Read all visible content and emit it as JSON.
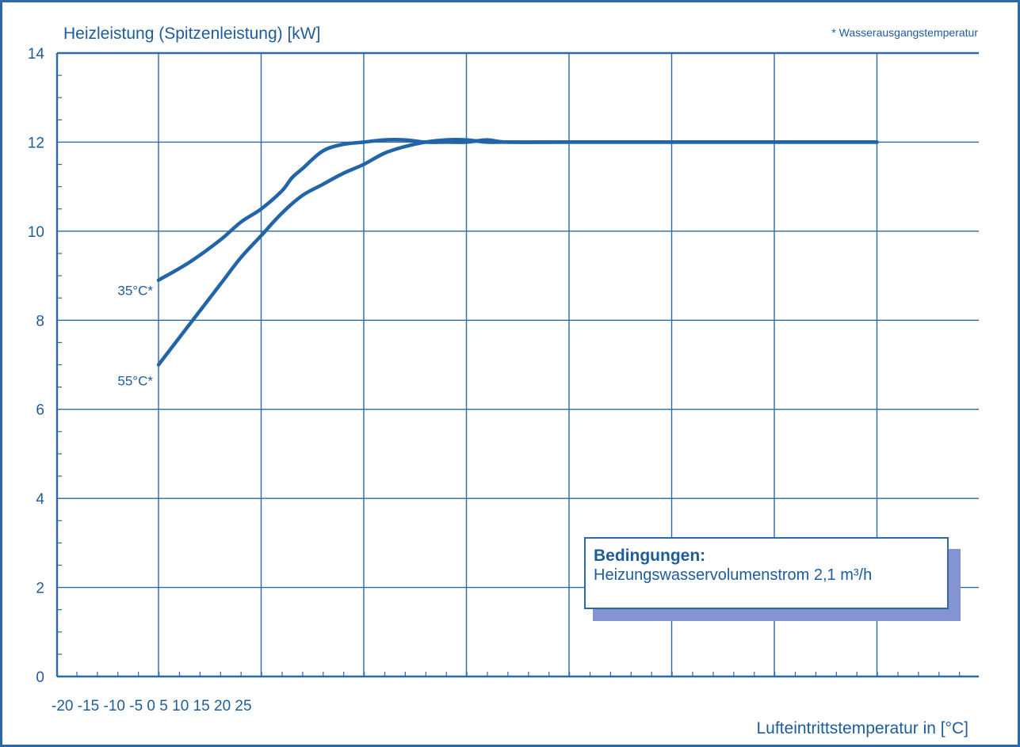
{
  "chart_data": {
    "type": "line",
    "title": "Heizleistung (Spitzenleistung) [kW]",
    "note": "* Wasserausgangstemperatur",
    "xlabel": "Lufteintrittstemperatur in [°C]",
    "x_tick_labels": [
      "-20",
      "-15",
      "-10",
      "-5",
      "0",
      "5",
      "10",
      "15",
      "20",
      "25"
    ],
    "y_tick_labels": [
      "0",
      "2",
      "4",
      "6",
      "8",
      "10",
      "12",
      "14"
    ],
    "ylim": [
      0,
      14
    ],
    "xlim": [
      -20,
      25
    ],
    "grid": true,
    "series": [
      {
        "name": "35°C*",
        "x": [
          -15,
          -13.5,
          -12,
          -11,
          -10,
          -9,
          -8.5,
          -8,
          -7,
          -6,
          -5,
          -4,
          -3,
          -2,
          -1,
          0,
          1,
          2,
          5,
          10,
          15,
          20,
          25
        ],
        "values": [
          8.9,
          9.3,
          9.8,
          10.2,
          10.5,
          10.9,
          11.2,
          11.4,
          11.8,
          11.95,
          12.0,
          12.05,
          12.05,
          12.0,
          12.0,
          12.0,
          12.05,
          12.0,
          12.0,
          12.0,
          12.0,
          12.0,
          12.0
        ]
      },
      {
        "name": "55°C*",
        "x": [
          -15,
          -13.5,
          -12,
          -11,
          -10,
          -9,
          -8,
          -7,
          -6,
          -5,
          -4,
          -3,
          -2,
          -1,
          0,
          1,
          2,
          5,
          10,
          15,
          20,
          25
        ],
        "values": [
          7.0,
          7.9,
          8.8,
          9.4,
          9.9,
          10.4,
          10.8,
          11.05,
          11.3,
          11.5,
          11.75,
          11.9,
          12.0,
          12.05,
          12.05,
          12.0,
          12.0,
          12.0,
          12.0,
          12.0,
          12.0,
          12.0
        ]
      }
    ]
  },
  "conditions": {
    "title": "Bedingungen:",
    "text": "Heizungswasservolumenstrom   2,1 m³/h"
  },
  "colors": {
    "line": "#2264a8",
    "grid": "#2b6aa6",
    "text": "#1e5c9c",
    "box_shadow": "#8593d3"
  }
}
